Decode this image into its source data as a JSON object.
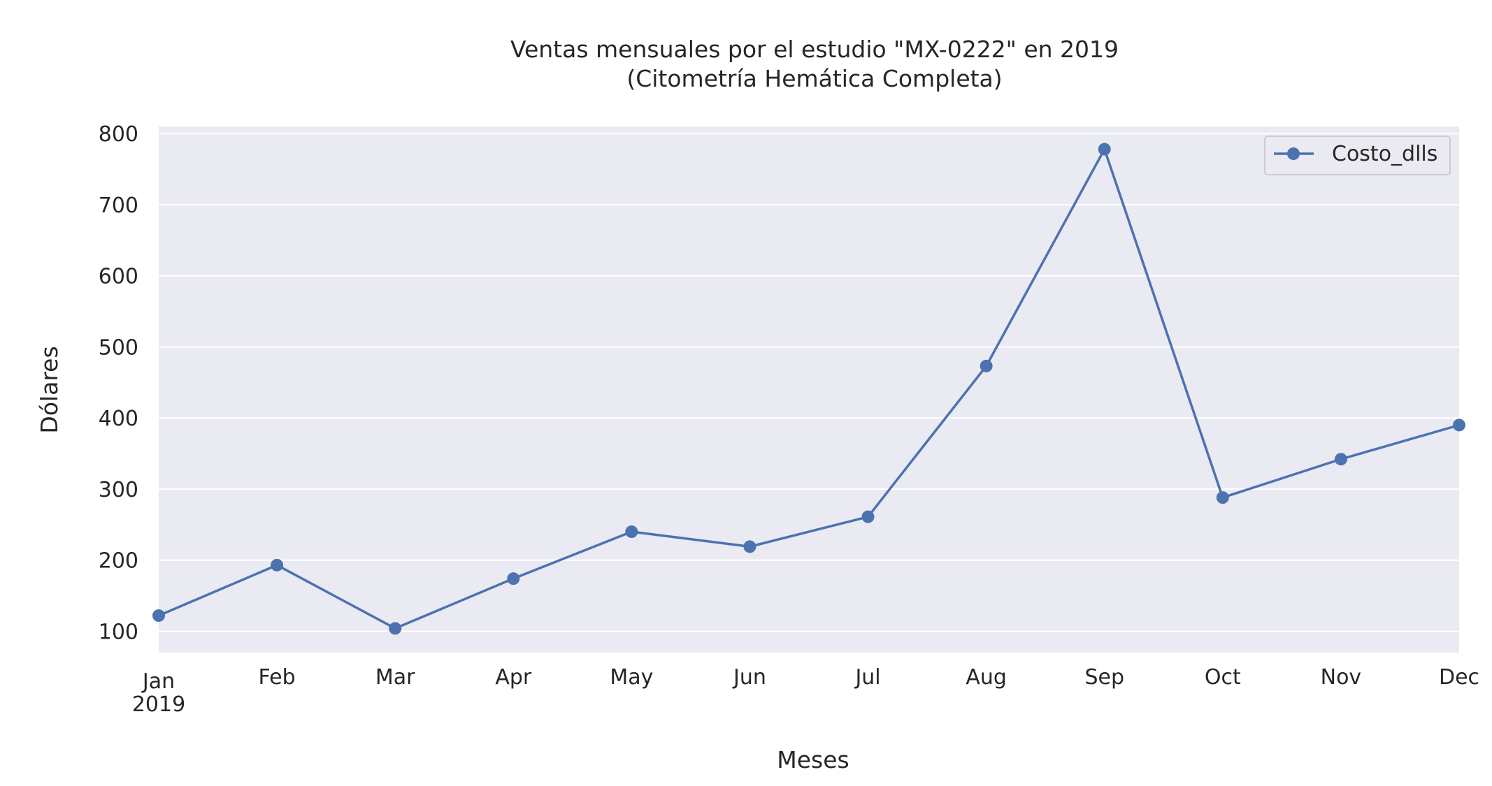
{
  "chart_data": {
    "type": "line",
    "title": "Ventas mensuales por el estudio \"MX-0222\" en 2019",
    "subtitle": "(Citometría Hemática Completa)",
    "xlabel": "Meses",
    "ylabel": "Dólares",
    "x_tick_labels": [
      "Jan",
      "Feb",
      "Mar",
      "Apr",
      "May",
      "Jun",
      "Jul",
      "Aug",
      "Sep",
      "Oct",
      "Nov",
      "Dec"
    ],
    "x_year_label": "2019",
    "y_ticks": [
      100,
      200,
      300,
      400,
      500,
      600,
      700,
      800
    ],
    "ylim": [
      70,
      810
    ],
    "grid": true,
    "legend_position": "top-right",
    "series": [
      {
        "name": "Costo_dlls",
        "color": "#4c72b0",
        "marker": "circle",
        "values": [
          122,
          193,
          104,
          174,
          240,
          219,
          261,
          473,
          778,
          288,
          342,
          390
        ]
      }
    ],
    "colors": {
      "plot_background": "#eaeaf2",
      "grid": "#ffffff",
      "text": "#262626"
    }
  }
}
